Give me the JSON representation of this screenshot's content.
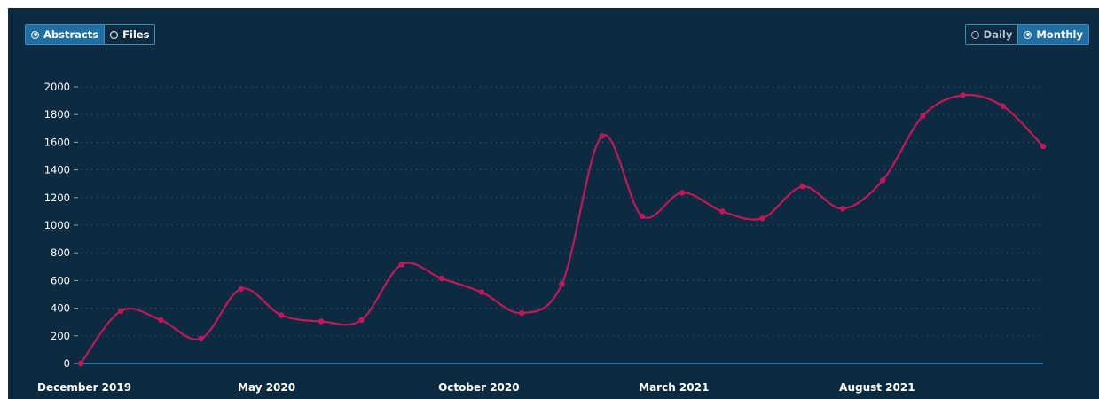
{
  "toggles": {
    "left": [
      {
        "label": "Abstracts",
        "active": true
      },
      {
        "label": "Files",
        "active": false
      }
    ],
    "right": [
      {
        "label": "Daily",
        "active": false
      },
      {
        "label": "Monthly",
        "active": true
      }
    ]
  },
  "colors": {
    "background": "#0d2b40",
    "line": "#c2185b",
    "baseline": "#2e86c1",
    "grid": "#3d5a6e",
    "accent": "#1f6fa3"
  },
  "chart_data": {
    "type": "line",
    "title": "",
    "xlabel": "",
    "ylabel": "",
    "ylim": [
      0,
      2000
    ],
    "yticks": [
      0,
      200,
      400,
      600,
      800,
      1000,
      1200,
      1400,
      1600,
      1800,
      2000
    ],
    "x_tick_labels": [
      "December 2019",
      "May 2020",
      "October 2020",
      "March 2021",
      "August 2021"
    ],
    "x_tick_indices": [
      0,
      5,
      10,
      15,
      20
    ],
    "x": [
      "2019-12",
      "2020-01",
      "2020-02",
      "2020-03",
      "2020-04",
      "2020-05",
      "2020-06",
      "2020-07",
      "2020-08",
      "2020-09",
      "2020-10",
      "2020-11",
      "2020-12",
      "2021-01",
      "2021-02",
      "2021-03",
      "2021-04",
      "2021-05",
      "2021-06",
      "2021-07",
      "2021-08",
      "2021-09",
      "2021-10",
      "2021-11",
      "2021-12"
    ],
    "series": [
      {
        "values": [
          0,
          380,
          315,
          180,
          540,
          350,
          305,
          315,
          715,
          615,
          515,
          365,
          575,
          1645,
          1065,
          1235,
          1100,
          1050,
          1280,
          1120,
          1325,
          1790,
          1940,
          1860,
          1570
        ]
      }
    ],
    "grid": true
  }
}
